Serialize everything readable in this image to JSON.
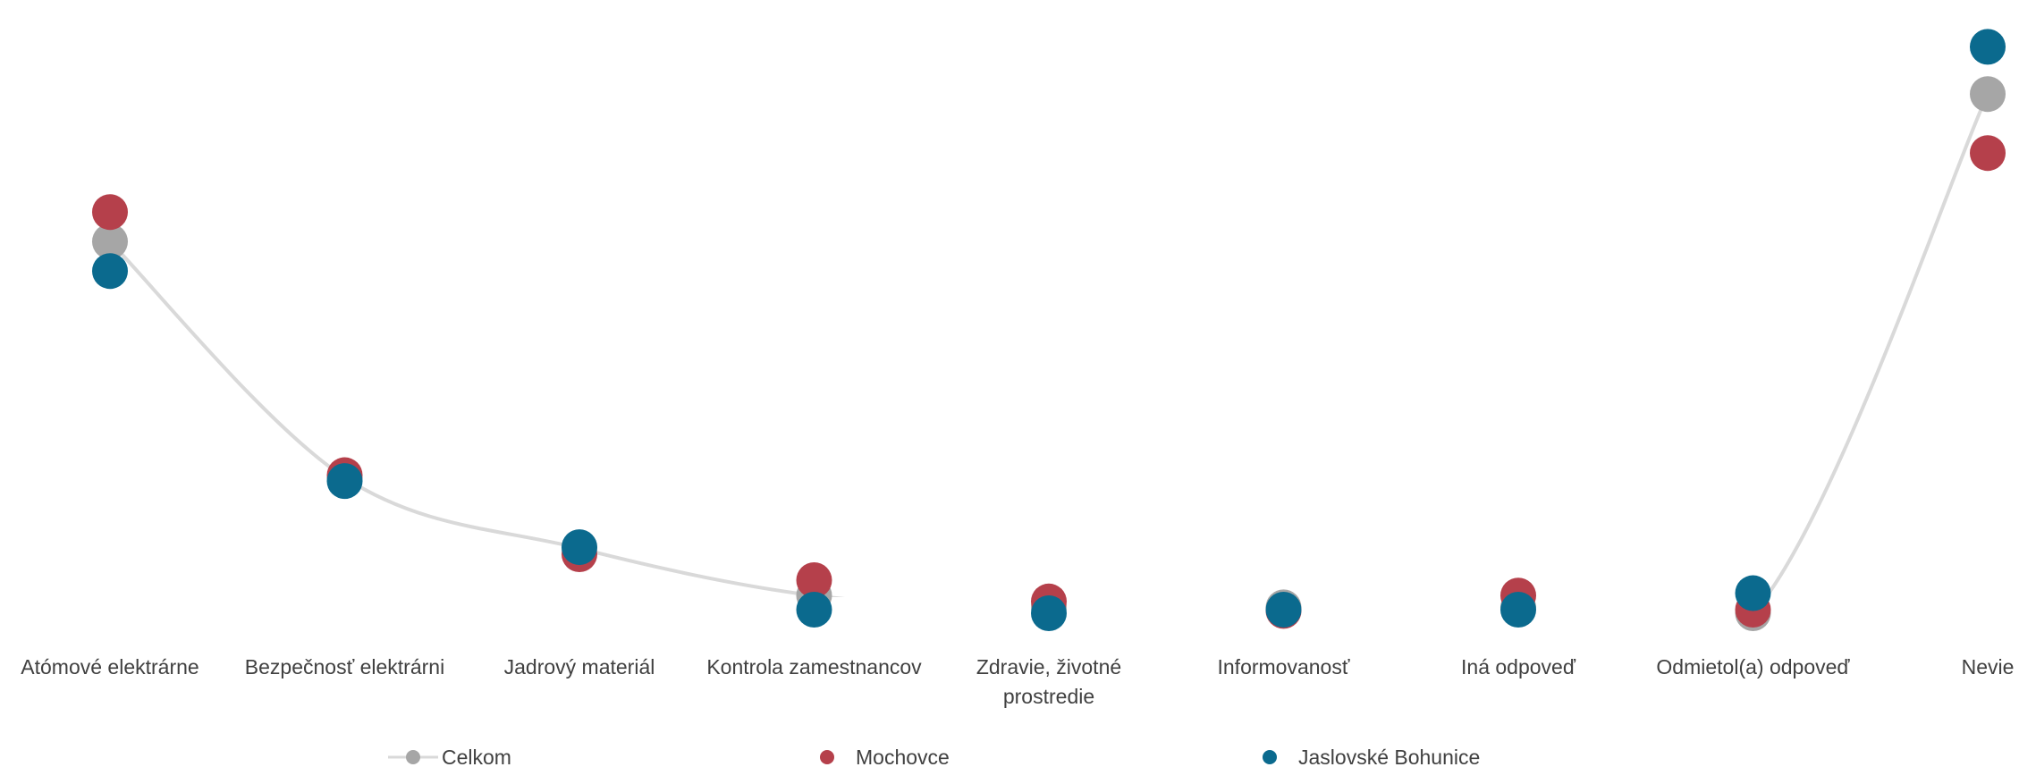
{
  "chart_data": {
    "type": "scatter",
    "title": "",
    "xlabel": "",
    "ylabel": "",
    "categories": [
      [
        "Atómové elektrárne"
      ],
      [
        "Bezpečnosť elektrárni"
      ],
      [
        "Jadrový materiál"
      ],
      [
        "Kontrola zamestnancov"
      ],
      [
        "Zdravie, životné",
        "prostredie"
      ],
      [
        "Informovanosť"
      ],
      [
        "Iná odpoveď"
      ],
      [
        "Odmietol(a) odpoveď"
      ],
      [
        "Nevie"
      ]
    ],
    "ylim": [
      0,
      50
    ],
    "grid": false,
    "legend_position": "bottom",
    "series": [
      {
        "name": "Celkom",
        "color": "#a6a6a6",
        "style": "line-marker",
        "values": [
          31.5,
          11.5,
          5.5,
          1.5,
          0.5,
          0.5,
          0.5,
          0.0,
          44.0
        ]
      },
      {
        "name": "Mochovce",
        "color": "#b5404b",
        "style": "marker",
        "values": [
          34.0,
          11.7,
          5.0,
          2.8,
          1.0,
          0.2,
          1.5,
          0.3,
          39.0
        ]
      },
      {
        "name": "Jaslovské Bohunice",
        "color": "#0b6a8e",
        "style": "marker",
        "values": [
          29.0,
          11.2,
          5.6,
          0.3,
          0.0,
          0.3,
          0.3,
          1.7,
          48.0
        ]
      }
    ],
    "line_color": "#d9d9d9"
  }
}
